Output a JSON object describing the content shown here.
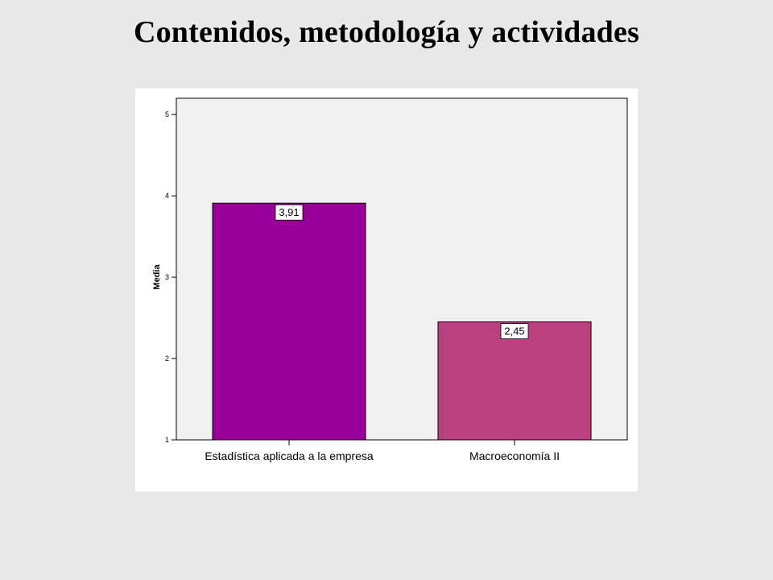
{
  "slide": {
    "title": "Contenidos, metodología y actividades"
  },
  "chart_data": {
    "type": "bar",
    "title": "",
    "xlabel": "",
    "ylabel": "Media",
    "categories": [
      "Estadística aplicada a la empresa",
      "Macroeconomía II"
    ],
    "values": [
      3.91,
      2.45
    ],
    "value_labels": [
      "3,91",
      "2,45"
    ],
    "bar_colors": [
      "#990099",
      "#bb4080"
    ],
    "ylim": [
      1,
      5.2
    ],
    "yticks": [
      1,
      2,
      3,
      4,
      5
    ],
    "ytick_labels": [
      "1",
      "2",
      "3",
      "4",
      "5"
    ],
    "grid": false,
    "plot_background": "#f0f0f0"
  }
}
